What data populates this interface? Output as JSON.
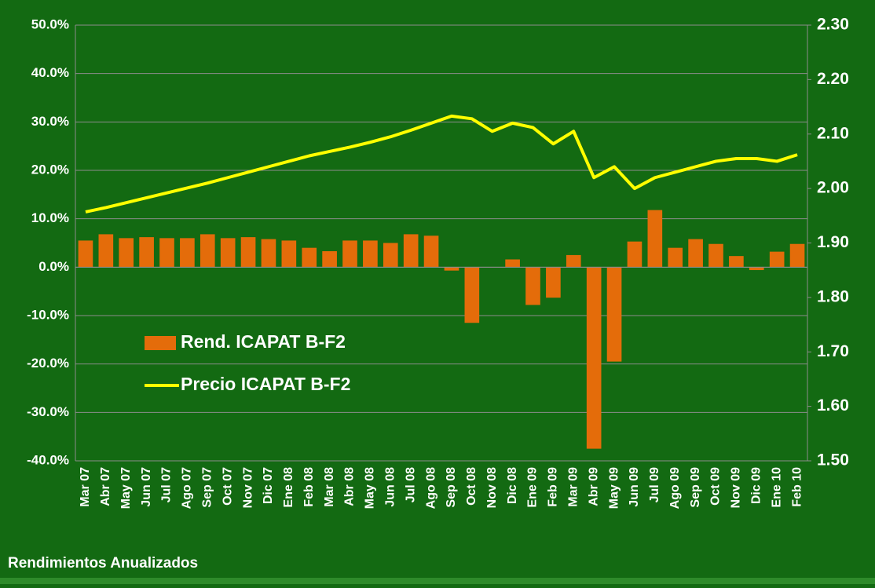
{
  "chart_data": {
    "type": "bar-line",
    "footer": "Rendimientos Anualizados",
    "categories": [
      "Mar 07",
      "Abr 07",
      "May 07",
      "Jun 07",
      "Jul 07",
      "Ago 07",
      "Sep 07",
      "Oct 07",
      "Nov 07",
      "Dic 07",
      "Ene 08",
      "Feb 08",
      "Mar 08",
      "Abr 08",
      "May 08",
      "Jun 08",
      "Jul 08",
      "Ago 08",
      "Sep 08",
      "Oct 08",
      "Nov 08",
      "Dic 08",
      "Ene 09",
      "Feb 09",
      "Mar 09",
      "Abr 09",
      "May 09",
      "Jun 09",
      "Jul 09",
      "Ago 09",
      "Sep 09",
      "Oct 09",
      "Nov 09",
      "Dic 09",
      "Ene 10",
      "Feb 10"
    ],
    "series": [
      {
        "name": "Rend. ICAPAT B-F2",
        "kind": "bar",
        "color": "#e46c0a",
        "values": [
          5.5,
          6.8,
          6.0,
          6.2,
          6.0,
          6.0,
          6.8,
          6.0,
          6.2,
          5.8,
          5.5,
          4.0,
          3.3,
          5.5,
          5.5,
          5.0,
          6.8,
          6.5,
          -0.7,
          -11.5,
          0,
          1.6,
          -7.8,
          -6.3,
          2.5,
          -37.5,
          -19.5,
          5.3,
          11.8,
          4.0,
          5.8,
          4.8,
          2.3,
          -0.6,
          3.2,
          4.8
        ]
      },
      {
        "name": "Precio ICAPAT B-F2",
        "kind": "line",
        "axis": "y2",
        "color": "#ffff00",
        "values": [
          1.957,
          1.965,
          1.974,
          1.983,
          1.992,
          2.001,
          2.01,
          2.02,
          2.03,
          2.04,
          2.05,
          2.06,
          2.068,
          2.076,
          2.085,
          2.095,
          2.107,
          2.12,
          2.133,
          2.128,
          2.105,
          2.12,
          2.112,
          2.082,
          2.105,
          2.02,
          2.04,
          2.0,
          2.02,
          2.03,
          2.04,
          2.05,
          2.055,
          2.055,
          2.05,
          2.062
        ]
      }
    ],
    "ylim": [
      -40,
      50
    ],
    "yticks": [
      {
        "value": -40,
        "label": "-40.0%"
      },
      {
        "value": -30,
        "label": "-30.0%"
      },
      {
        "value": -20,
        "label": "-20.0%"
      },
      {
        "value": -10,
        "label": "-10.0%"
      },
      {
        "value": 0,
        "label": "0.0%"
      },
      {
        "value": 10,
        "label": "10.0%"
      },
      {
        "value": 20,
        "label": "20.0%"
      },
      {
        "value": 30,
        "label": "30.0%"
      },
      {
        "value": 40,
        "label": "40.0%"
      },
      {
        "value": 50,
        "label": "50.0%"
      }
    ],
    "y2lim": [
      1.5,
      2.3
    ],
    "y2ticks": [
      {
        "value": 1.5,
        "label": "1.50"
      },
      {
        "value": 1.6,
        "label": "1.60"
      },
      {
        "value": 1.7,
        "label": "1.70"
      },
      {
        "value": 1.8,
        "label": "1.80"
      },
      {
        "value": 1.9,
        "label": "1.90"
      },
      {
        "value": 2.0,
        "label": "2.00"
      },
      {
        "value": 2.1,
        "label": "2.10"
      },
      {
        "value": 2.2,
        "label": "2.20"
      },
      {
        "value": 2.3,
        "label": "2.30"
      }
    ],
    "grid": true,
    "legend": "center-left"
  }
}
